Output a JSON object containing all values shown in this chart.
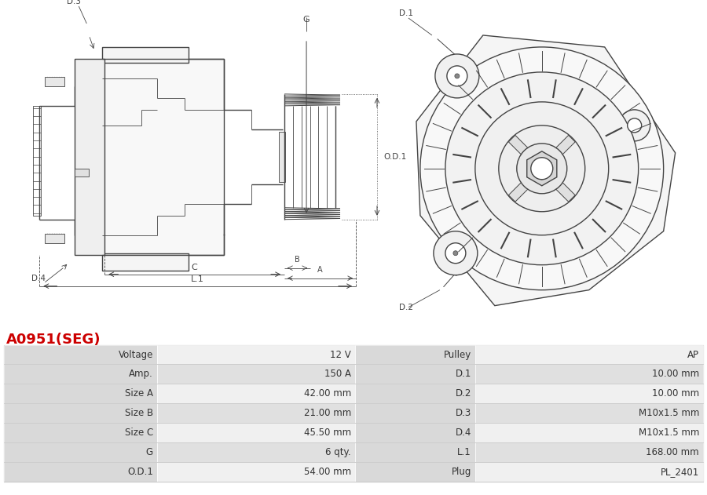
{
  "title": "A0951(SEG)",
  "title_color": "#cc0000",
  "table_headers_left": [
    "Voltage",
    "Amp.",
    "Size A",
    "Size B",
    "Size C",
    "G",
    "O.D.1"
  ],
  "table_values_left": [
    "12 V",
    "150 A",
    "42.00 mm",
    "21.00 mm",
    "45.50 mm",
    "6 qty.",
    "54.00 mm"
  ],
  "table_headers_right": [
    "Pulley",
    "D.1",
    "D.2",
    "D.3",
    "D.4",
    "L.1",
    "Plug"
  ],
  "table_values_right": [
    "AP",
    "10.00 mm",
    "10.00 mm",
    "M10x1.5 mm",
    "M10x1.5 mm",
    "168.00 mm",
    "PL_2401"
  ],
  "bg_color": "#ffffff",
  "table_header_bg": "#d9d9d9",
  "table_row_bg1": "#f0f0f0",
  "table_row_bg2": "#e0e0e0",
  "table_border_color": "#ffffff",
  "line_color": "#444444",
  "dim_color": "#444444"
}
